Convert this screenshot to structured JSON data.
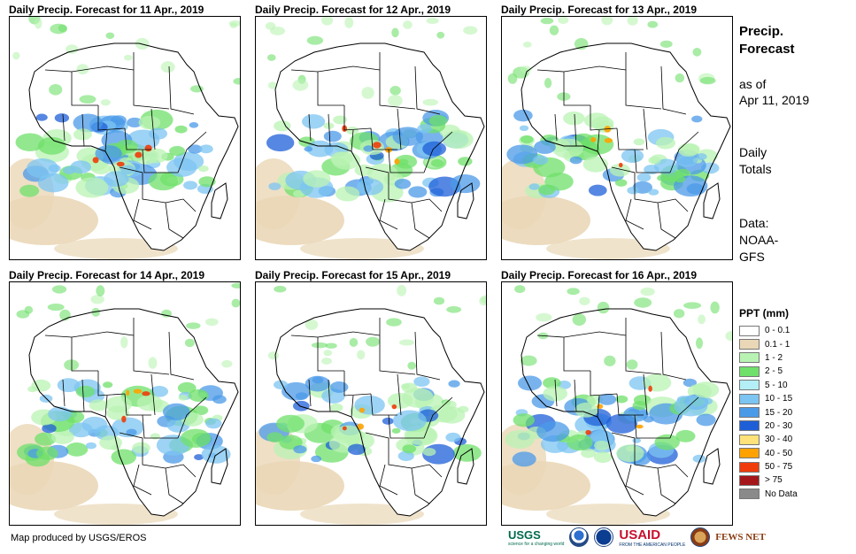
{
  "panels": [
    {
      "title": "Daily Precip. Forecast for 11 Apr., 2019"
    },
    {
      "title": "Daily Precip. Forecast for 12 Apr., 2019"
    },
    {
      "title": "Daily Precip. Forecast for 13 Apr., 2019"
    },
    {
      "title": "Daily Precip. Forecast for 14 Apr., 2019"
    },
    {
      "title": "Daily Precip. Forecast for 15 Apr., 2019"
    },
    {
      "title": "Daily Precip. Forecast for 16 Apr., 2019"
    }
  ],
  "sidebar": {
    "title": "Precip. Forecast",
    "as_of_label": "as of",
    "as_of_date": "Apr 11, 2019",
    "totals": "Daily Totals",
    "data_label": "Data:",
    "data_source": "NOAA-GFS"
  },
  "legend": {
    "title": "PPT (mm)",
    "items": [
      {
        "label": "0 - 0.1",
        "color": "#ffffff"
      },
      {
        "label": "0.1 - 1",
        "color": "#ead7b7"
      },
      {
        "label": "1 - 2",
        "color": "#b9f3b3"
      },
      {
        "label": "2 - 5",
        "color": "#6fe06a"
      },
      {
        "label": "5 - 10",
        "color": "#b4eef6"
      },
      {
        "label": "10 - 15",
        "color": "#7cc4f1"
      },
      {
        "label": "15 - 20",
        "color": "#4b9ae8"
      },
      {
        "label": "20 - 30",
        "color": "#1e5fd8"
      },
      {
        "label": "30 - 40",
        "color": "#ffe27a"
      },
      {
        "label": "40 - 50",
        "color": "#ffa200"
      },
      {
        "label": "50 - 75",
        "color": "#f03c0a"
      },
      {
        "label": "> 75",
        "color": "#a4161a"
      },
      {
        "label": "No Data",
        "color": "#8a8a8a"
      }
    ]
  },
  "footer": {
    "credit": "Map produced by USGS/EROS"
  },
  "logos": {
    "usgs": "USGS",
    "usgs_tagline": "science for a changing world",
    "usaid": "USAID",
    "usaid_tagline": "FROM THE AMERICAN PEOPLE",
    "fews": "FEWS NET"
  }
}
